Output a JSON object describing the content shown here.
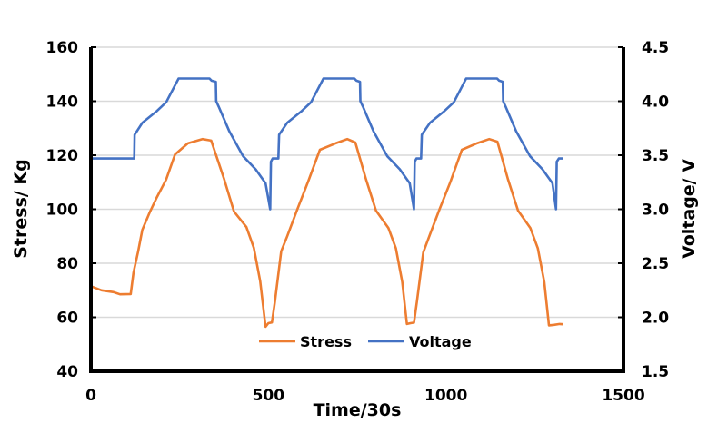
{
  "chart_data": {
    "type": "line",
    "title": "",
    "xlabel": "Time/30s",
    "ylabel": "Stress/ Kg",
    "y2label": "Voltage/ V",
    "xlim": [
      0,
      1500
    ],
    "ylim": [
      40,
      160
    ],
    "y2lim": [
      1.5,
      4.5
    ],
    "xticks": [
      0,
      500,
      1000,
      1500
    ],
    "yticks": [
      40,
      60,
      80,
      100,
      120,
      140,
      160
    ],
    "y2ticks": [
      "1.5",
      "2.0",
      "2.5",
      "3.0",
      "3.5",
      "4.0",
      "4.5"
    ],
    "grid": true,
    "legend": "bottom-center inside plot",
    "series": [
      {
        "name": "Stress",
        "axis": "left",
        "color": "#ED7D31",
        "points": [
          [
            0,
            71.5
          ],
          [
            30,
            70
          ],
          [
            64,
            69.3
          ],
          [
            82,
            68.5
          ],
          [
            112,
            68.6
          ],
          [
            120,
            76.6
          ],
          [
            133,
            84.4
          ],
          [
            145,
            92.4
          ],
          [
            166,
            99
          ],
          [
            186,
            104.5
          ],
          [
            212,
            111
          ],
          [
            237,
            120.3
          ],
          [
            273,
            124.4
          ],
          [
            314,
            126
          ],
          [
            339,
            125.4
          ],
          [
            375,
            111.3
          ],
          [
            403,
            99.2
          ],
          [
            438,
            93.4
          ],
          [
            459,
            85.7
          ],
          [
            477,
            73.3
          ],
          [
            492,
            56.5
          ],
          [
            500,
            57.8
          ],
          [
            510,
            58.1
          ],
          [
            518,
            65.5
          ],
          [
            536,
            84.4
          ],
          [
            553,
            90
          ],
          [
            582,
            100.2
          ],
          [
            612,
            110.3
          ],
          [
            645,
            122
          ],
          [
            689,
            124.4
          ],
          [
            722,
            126
          ],
          [
            745,
            124.7
          ],
          [
            775,
            111
          ],
          [
            803,
            99.5
          ],
          [
            838,
            93
          ],
          [
            859,
            85.5
          ],
          [
            877,
            73
          ],
          [
            890,
            57.5
          ],
          [
            900,
            57.8
          ],
          [
            910,
            58
          ],
          [
            918,
            65.5
          ],
          [
            936,
            84
          ],
          [
            953,
            90
          ],
          [
            982,
            100
          ],
          [
            1012,
            110
          ],
          [
            1045,
            122
          ],
          [
            1089,
            124.5
          ],
          [
            1122,
            126
          ],
          [
            1145,
            125
          ],
          [
            1175,
            111
          ],
          [
            1203,
            99.5
          ],
          [
            1238,
            93
          ],
          [
            1259,
            85.5
          ],
          [
            1277,
            73
          ],
          [
            1290,
            57
          ],
          [
            1305,
            57.2
          ],
          [
            1320,
            57.5
          ],
          [
            1330,
            57.4
          ]
        ]
      },
      {
        "name": "Voltage",
        "axis": "right",
        "color": "#4472C4",
        "points": [
          [
            0,
            3.47
          ],
          [
            122,
            3.47
          ],
          [
            123,
            3.69
          ],
          [
            145,
            3.8
          ],
          [
            186,
            3.91
          ],
          [
            212,
            3.99
          ],
          [
            247,
            4.21
          ],
          [
            334,
            4.21
          ],
          [
            340,
            4.19
          ],
          [
            352,
            4.18
          ],
          [
            353,
            4.0
          ],
          [
            360,
            3.95
          ],
          [
            390,
            3.72
          ],
          [
            429,
            3.49
          ],
          [
            464,
            3.37
          ],
          [
            492,
            3.24
          ],
          [
            505,
            3.0
          ],
          [
            507,
            3.44
          ],
          [
            512,
            3.47
          ],
          [
            528,
            3.47
          ],
          [
            530,
            3.69
          ],
          [
            553,
            3.8
          ],
          [
            594,
            3.91
          ],
          [
            620,
            3.99
          ],
          [
            655,
            4.21
          ],
          [
            742,
            4.21
          ],
          [
            748,
            4.19
          ],
          [
            758,
            4.18
          ],
          [
            759,
            4.0
          ],
          [
            766,
            3.95
          ],
          [
            796,
            3.72
          ],
          [
            835,
            3.49
          ],
          [
            870,
            3.37
          ],
          [
            898,
            3.24
          ],
          [
            910,
            3.0
          ],
          [
            912,
            3.44
          ],
          [
            917,
            3.47
          ],
          [
            930,
            3.47
          ],
          [
            932,
            3.69
          ],
          [
            955,
            3.8
          ],
          [
            996,
            3.91
          ],
          [
            1022,
            3.99
          ],
          [
            1057,
            4.21
          ],
          [
            1144,
            4.21
          ],
          [
            1150,
            4.19
          ],
          [
            1160,
            4.18
          ],
          [
            1161,
            4.0
          ],
          [
            1168,
            3.95
          ],
          [
            1198,
            3.72
          ],
          [
            1237,
            3.49
          ],
          [
            1272,
            3.37
          ],
          [
            1300,
            3.24
          ],
          [
            1310,
            3.0
          ],
          [
            1312,
            3.44
          ],
          [
            1318,
            3.47
          ],
          [
            1330,
            3.47
          ]
        ]
      }
    ]
  }
}
